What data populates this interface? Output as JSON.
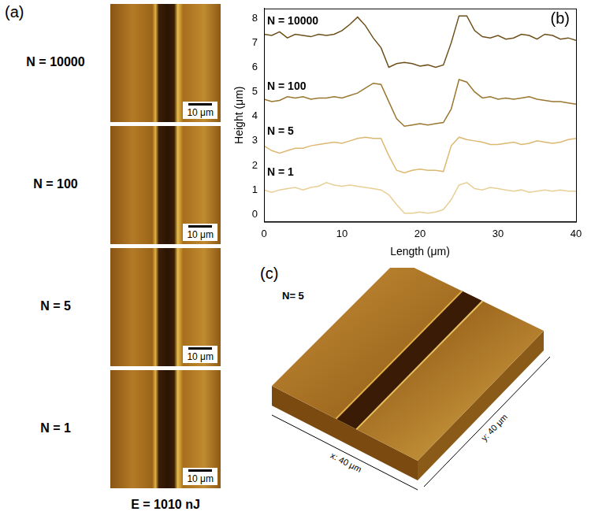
{
  "panel_a": {
    "label": "(a)",
    "images": [
      {
        "title": "N = 10000",
        "scale_bar": "10 μm"
      },
      {
        "title": "N = 100",
        "scale_bar": "10 μm"
      },
      {
        "title": "N = 5",
        "scale_bar": "10 μm"
      },
      {
        "title": "N = 1",
        "scale_bar": "10 μm"
      }
    ],
    "caption": "E = 1010 nJ"
  },
  "chart_data": {
    "type": "line",
    "title": "(b)",
    "x_label": "Length (μm)",
    "y_label": "Height (μm)",
    "x": [
      0,
      1,
      2,
      3,
      4,
      5,
      6,
      7,
      8,
      9,
      10,
      11,
      12,
      13,
      14,
      15,
      16,
      17,
      18,
      19,
      20,
      21,
      22,
      23,
      24,
      25,
      26,
      27,
      28,
      29,
      30,
      31,
      32,
      33,
      34,
      35,
      36,
      37,
      38,
      39,
      40
    ],
    "series": [
      {
        "name": "N = 10000",
        "color": "#6e4f1a",
        "values": [
          7.35,
          7.3,
          7.45,
          7.2,
          7.35,
          7.3,
          7.25,
          7.35,
          7.3,
          7.35,
          7.5,
          7.75,
          8.05,
          7.7,
          7.2,
          6.8,
          6.0,
          6.15,
          6.2,
          6.15,
          6.05,
          6.1,
          6.0,
          6.1,
          7.0,
          8.1,
          8.1,
          7.5,
          7.25,
          7.2,
          7.3,
          7.15,
          7.2,
          7.35,
          7.3,
          7.15,
          7.35,
          7.3,
          7.15,
          7.2,
          7.1
        ]
      },
      {
        "name": "N = 100",
        "color": "#9a7630",
        "values": [
          4.7,
          4.6,
          4.65,
          4.8,
          4.75,
          4.8,
          4.7,
          4.75,
          4.75,
          4.8,
          4.75,
          4.85,
          4.95,
          5.15,
          5.35,
          5.3,
          4.6,
          3.9,
          3.6,
          3.65,
          3.7,
          3.65,
          3.7,
          3.75,
          4.3,
          5.5,
          5.4,
          5.0,
          4.75,
          4.8,
          4.7,
          4.75,
          4.7,
          4.75,
          4.8,
          4.7,
          4.65,
          4.6,
          4.6,
          4.55,
          4.5
        ]
      },
      {
        "name": "N = 5",
        "color": "#dcb872",
        "values": [
          2.8,
          2.6,
          2.5,
          2.6,
          2.7,
          2.7,
          2.8,
          2.85,
          2.9,
          2.95,
          2.9,
          3.0,
          3.1,
          3.15,
          3.1,
          3.1,
          2.4,
          1.8,
          1.7,
          1.8,
          1.85,
          1.8,
          1.8,
          1.75,
          2.8,
          3.15,
          3.05,
          3.0,
          2.95,
          2.85,
          2.85,
          2.9,
          2.95,
          2.85,
          2.9,
          3.0,
          2.95,
          2.9,
          2.95,
          3.05,
          3.1
        ]
      },
      {
        "name": "N = 1",
        "color": "#e8cf96",
        "values": [
          1.0,
          0.9,
          1.0,
          1.05,
          1.1,
          1.0,
          1.1,
          1.15,
          1.3,
          1.2,
          1.15,
          1.2,
          1.15,
          1.1,
          1.05,
          1.0,
          0.8,
          0.4,
          0.05,
          0.05,
          0.1,
          0.05,
          0.1,
          0.2,
          0.6,
          1.2,
          1.3,
          1.05,
          1.0,
          1.1,
          1.05,
          1.0,
          0.95,
          1.0,
          0.9,
          0.95,
          1.0,
          0.95,
          1.0,
          0.95,
          0.95
        ]
      }
    ],
    "xlim": [
      0,
      40
    ],
    "xticks": [
      0,
      10,
      20,
      30,
      40
    ],
    "ylim": [
      -0.3,
      8.4
    ],
    "yticks": [
      0,
      1,
      2,
      3,
      4,
      5,
      6,
      7,
      8
    ],
    "grid": false
  },
  "panel_c": {
    "label": "(c)",
    "title": "N= 5",
    "x_axis": "x: 40 μm",
    "y_axis": "y: 40 μm"
  }
}
